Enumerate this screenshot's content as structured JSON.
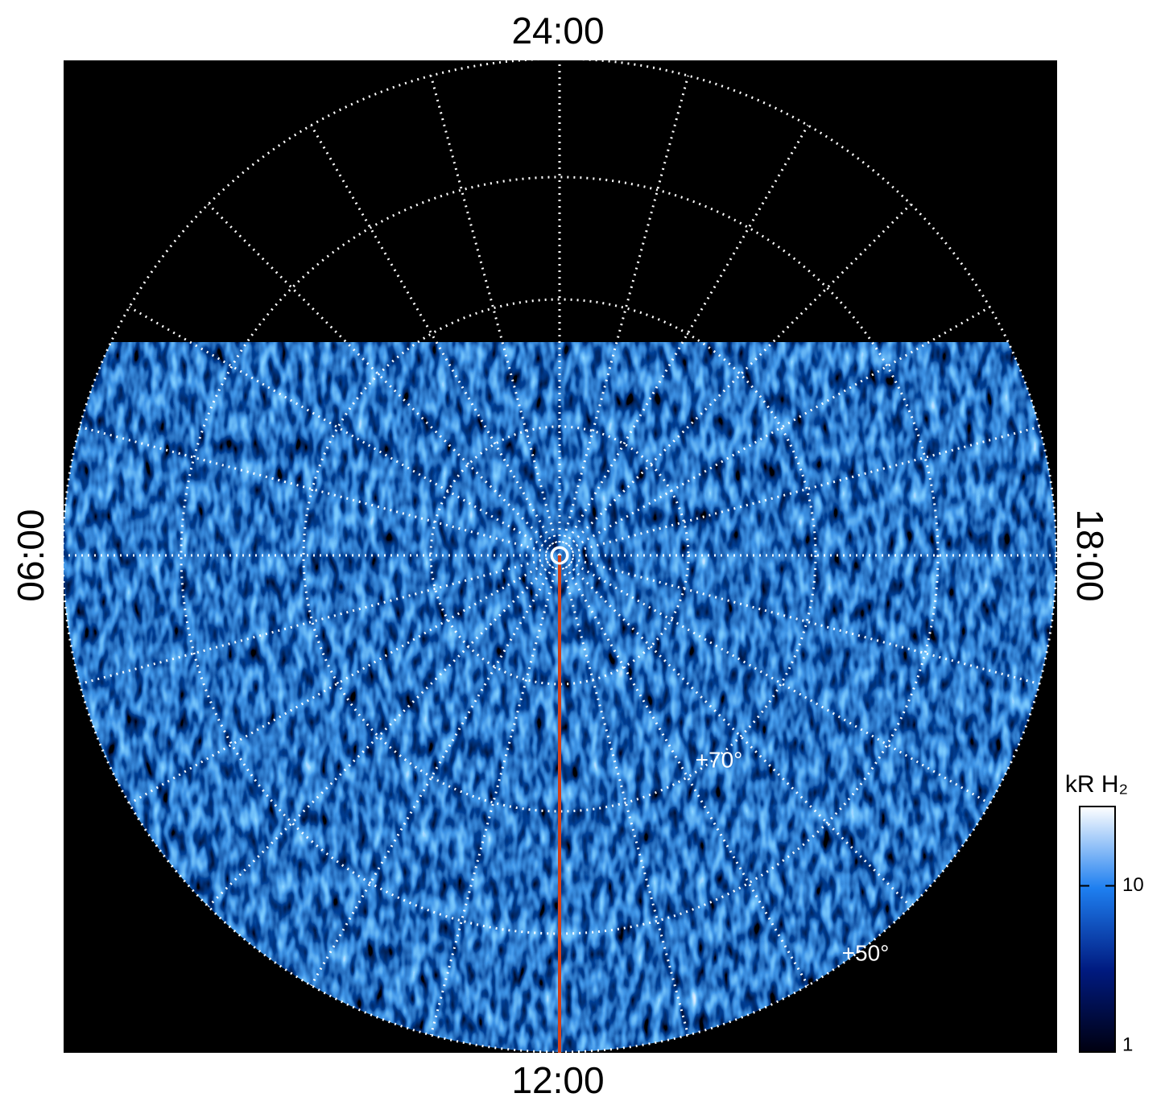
{
  "chart_data": {
    "type": "polar",
    "local_time_labels": {
      "top": "24:00",
      "bottom": "12:00",
      "left": "06:00",
      "right": "18:00"
    },
    "latitude_labels": [
      "+70°",
      "+50°"
    ],
    "colorbar": {
      "label": "kR H₂",
      "lim": [
        1,
        30
      ],
      "ticks": [
        1,
        10
      ],
      "log": true,
      "colors": [
        "#000010",
        "#001a80",
        "#1e7ff0",
        "#ffffff"
      ]
    },
    "meridian_color": "#d2401a"
  }
}
